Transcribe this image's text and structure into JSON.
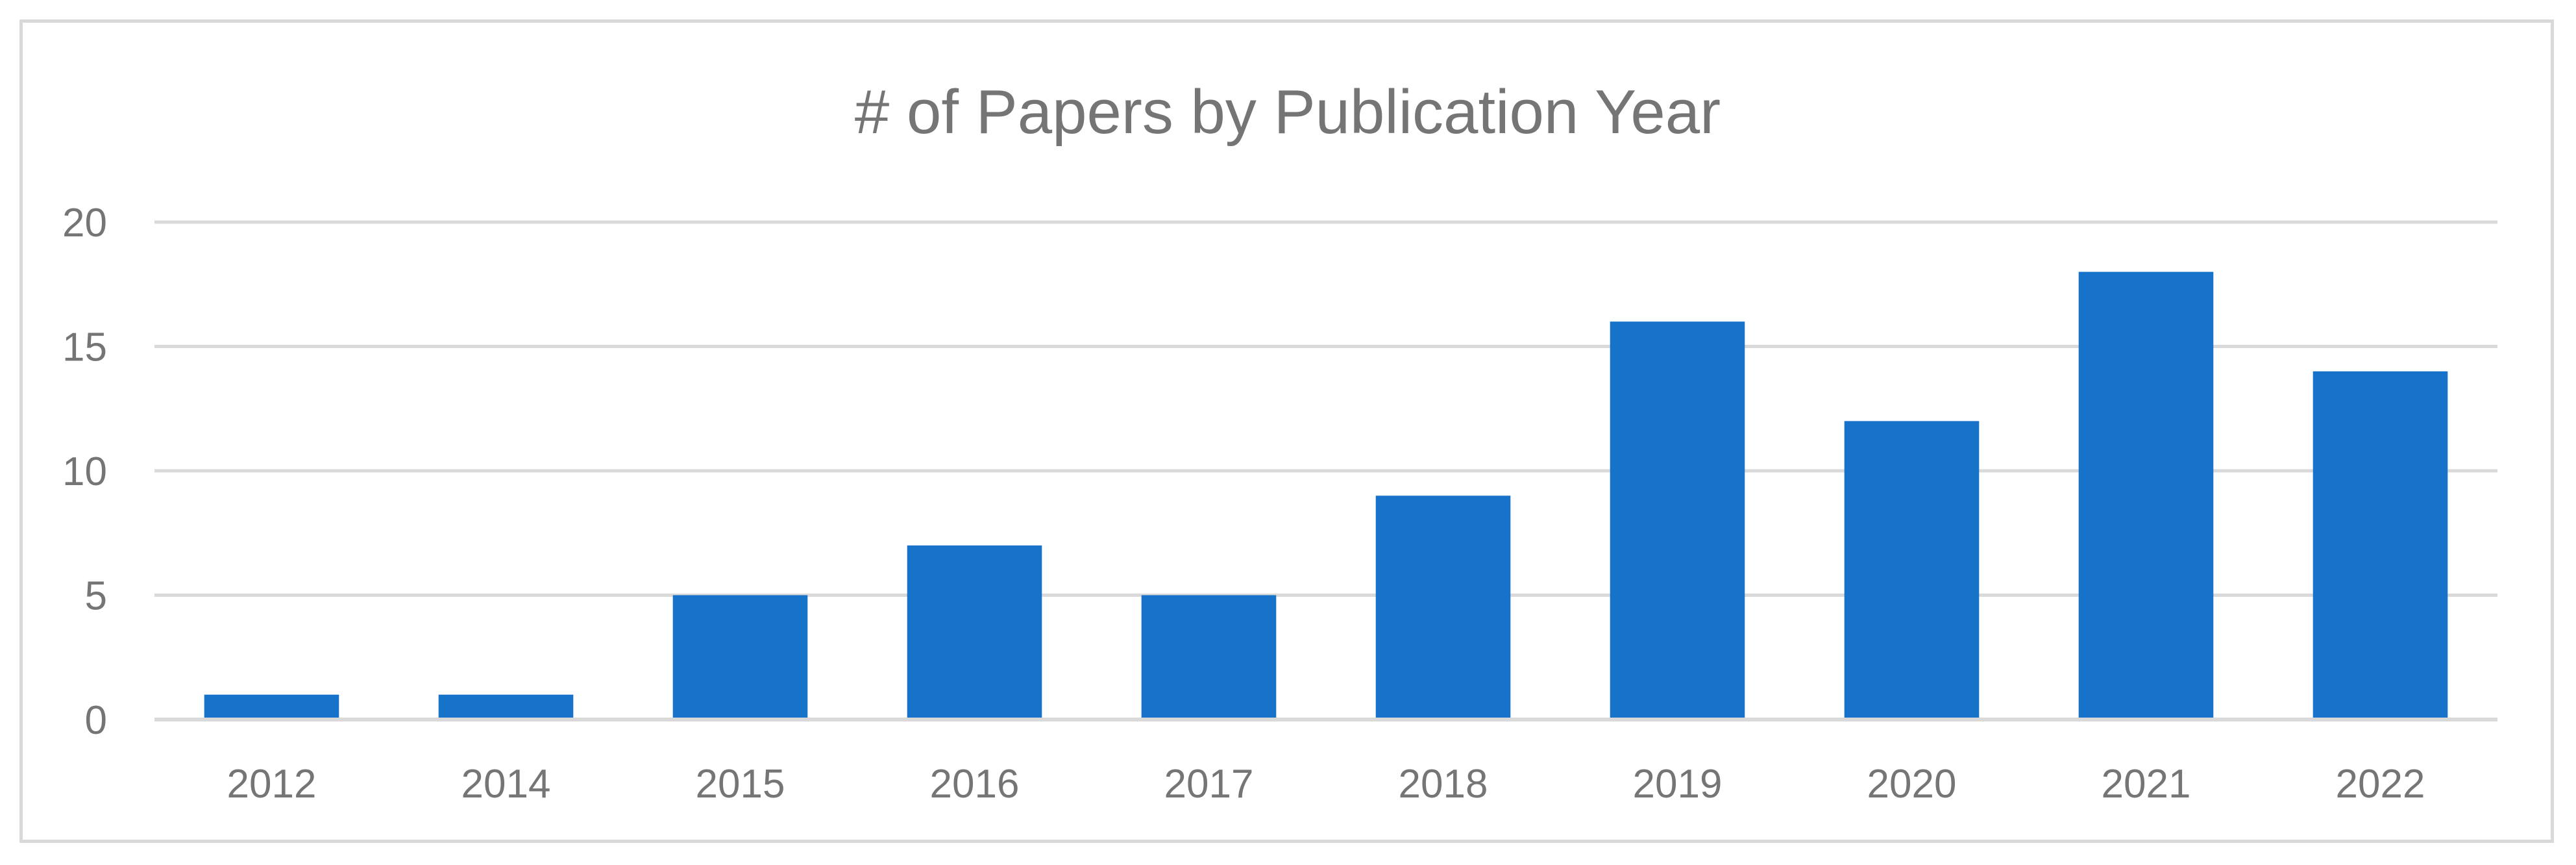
{
  "chart_data": {
    "type": "bar",
    "title": "# of Papers by Publication Year",
    "xlabel": "",
    "ylabel": "",
    "categories": [
      "2012",
      "2014",
      "2015",
      "2016",
      "2017",
      "2018",
      "2019",
      "2020",
      "2021",
      "2022"
    ],
    "values": [
      1,
      1,
      5,
      7,
      5,
      9,
      16,
      12,
      18,
      14
    ],
    "ylim": [
      0,
      20
    ],
    "yticks": [
      0,
      5,
      10,
      15,
      20
    ],
    "grid": true,
    "legend": "none",
    "bar_color": "#1773c9"
  }
}
